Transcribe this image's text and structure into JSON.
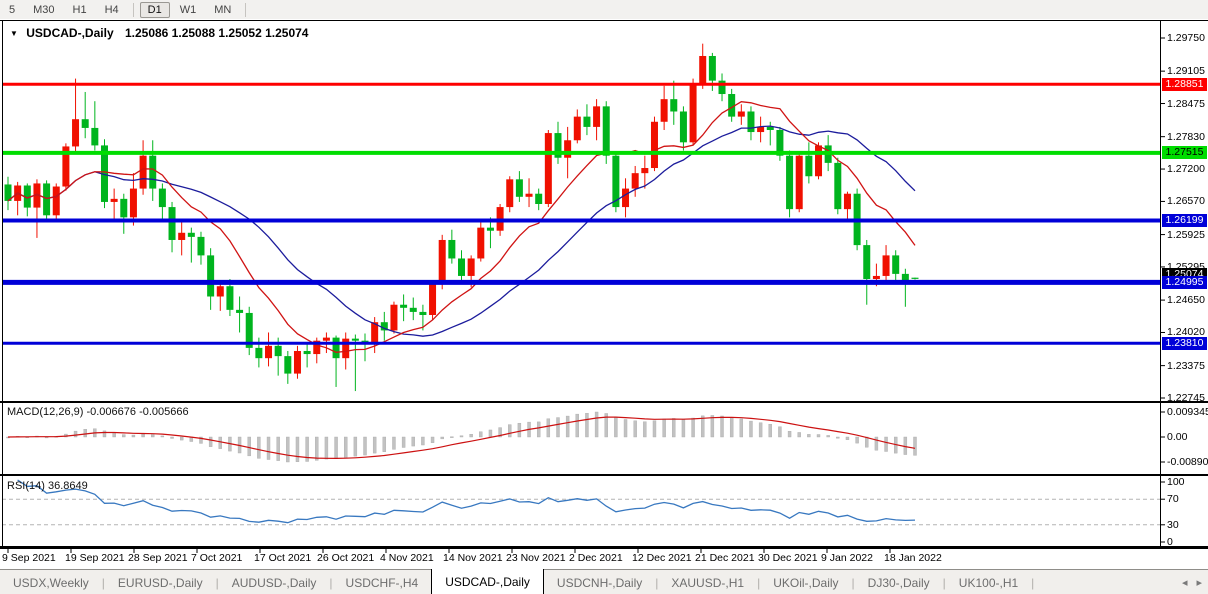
{
  "toolbar": {
    "items": [
      {
        "label": "5"
      },
      {
        "label": "M30"
      },
      {
        "label": "H1"
      },
      {
        "label": "H4"
      },
      {
        "sep": true
      },
      {
        "label": "D1",
        "active": true
      },
      {
        "label": "W1"
      },
      {
        "label": "MN"
      },
      {
        "sep": true
      }
    ]
  },
  "chart": {
    "title": {
      "dropdown_icon": "▼",
      "symbol": "USDCAD-,Daily",
      "ohlc": "1.25086 1.25088 1.25052 1.25074"
    },
    "current_price_badge": {
      "label": "1.25074",
      "value": 1.25074,
      "bg": "#000000",
      "fg": "#ffffff"
    }
  },
  "macd_header": "MACD(12,26,9) -0.006676 -0.005666",
  "rsi_header": "RSI(14) 36.8649",
  "tabs": {
    "items": [
      {
        "label": "USDX,Weekly"
      },
      {
        "label": "EURUSD-,Daily"
      },
      {
        "label": "AUDUSD-,Daily"
      },
      {
        "label": "USDCHF-,H4"
      },
      {
        "label": "USDCAD-,Daily",
        "active": true
      },
      {
        "label": "USDCNH-,Daily"
      },
      {
        "label": "XAUUSD-,H1"
      },
      {
        "label": "UKOil-,Daily"
      },
      {
        "label": "DJ30-,Daily"
      },
      {
        "label": "UK100-,H1"
      }
    ],
    "scroll_left": "◂",
    "scroll_right": "▸"
  },
  "chart_data": {
    "type": "candlestick",
    "symbol": "USDCAD",
    "timeframe": "Daily",
    "up_color": "#f01000",
    "down_color": "#00b41e",
    "ylim": [
      1.2245,
      1.2995
    ],
    "y_ticks": [
      1.2975,
      1.29105,
      1.28475,
      1.2783,
      1.272,
      1.2657,
      1.25925,
      1.25295,
      1.2465,
      1.2402,
      1.23375,
      1.22745
    ],
    "x_labels": [
      "9 Sep 2021",
      "19 Sep 2021",
      "28 Sep 2021",
      "7 Oct 2021",
      "17 Oct 2021",
      "26 Oct 2021",
      "4 Nov 2021",
      "14 Nov 2021",
      "23 Nov 2021",
      "2 Dec 2021",
      "12 Dec 2021",
      "21 Dec 2021",
      "30 Dec 2021",
      "9 Jan 2022",
      "18 Jan 2022"
    ],
    "hlines": [
      {
        "value": 1.28851,
        "label": "1.28851",
        "color": "#fe0000",
        "width": 3,
        "label_bg": "#fe0000",
        "label_fg": "#ffffff"
      },
      {
        "value": 1.27515,
        "label": "1.27515",
        "color": "#00dd00",
        "width": 4,
        "label_bg": "#00dd00",
        "label_fg": "#000000"
      },
      {
        "value": 1.26199,
        "label": "1.26199",
        "color": "#0000d8",
        "width": 4,
        "label_bg": "#0000d8",
        "label_fg": "#ffffff"
      },
      {
        "value": 1.24995,
        "label": "1.24995",
        "color": "#0000d8",
        "width": 5,
        "label_bg": "#0000d8",
        "label_fg": "#ffffff"
      },
      {
        "value": 1.2381,
        "label": "1.23810",
        "color": "#0000d8",
        "width": 3,
        "label_bg": "#0000d8",
        "label_fg": "#ffffff"
      }
    ],
    "overlays": {
      "ma_fast": {
        "period": 10,
        "color": "#d01414"
      },
      "ma_slow": {
        "period": 21,
        "color": "#1c1c9c"
      }
    },
    "macd": {
      "fast": 12,
      "slow": 26,
      "signal": 9,
      "hist_color": "#c2c2c2",
      "signal_color": "#cc1111",
      "displayed_values": [
        -0.006676,
        -0.005666
      ],
      "axis_labels": [
        "0.009345",
        "0.00",
        "-0.008902"
      ]
    },
    "rsi": {
      "period": 14,
      "color": "#3878c0",
      "displayed_value": 36.8649,
      "levels": [
        70,
        30
      ],
      "axis_labels": [
        "100",
        "70",
        "30",
        "0"
      ]
    },
    "candles": [
      [
        1.269,
        1.2705,
        1.264,
        1.2658
      ],
      [
        1.2658,
        1.2695,
        1.263,
        1.2688
      ],
      [
        1.2688,
        1.2692,
        1.2628,
        1.2645
      ],
      [
        1.2645,
        1.27,
        1.2586,
        1.2692
      ],
      [
        1.2692,
        1.2698,
        1.2618,
        1.263
      ],
      [
        1.263,
        1.2692,
        1.262,
        1.2686
      ],
      [
        1.2686,
        1.277,
        1.2678,
        1.2764
      ],
      [
        1.2764,
        1.2896,
        1.2754,
        1.2817
      ],
      [
        1.2817,
        1.287,
        1.278,
        1.28
      ],
      [
        1.28,
        1.2852,
        1.2756,
        1.2766
      ],
      [
        1.2766,
        1.2778,
        1.2644,
        1.2656
      ],
      [
        1.2656,
        1.2682,
        1.262,
        1.2662
      ],
      [
        1.2662,
        1.2672,
        1.2594,
        1.2626
      ],
      [
        1.2626,
        1.2712,
        1.261,
        1.2682
      ],
      [
        1.2682,
        1.2776,
        1.267,
        1.2746
      ],
      [
        1.2746,
        1.2776,
        1.2658,
        1.2682
      ],
      [
        1.2682,
        1.2692,
        1.2618,
        1.2646
      ],
      [
        1.2646,
        1.2656,
        1.2558,
        1.2582
      ],
      [
        1.2582,
        1.2622,
        1.2552,
        1.2596
      ],
      [
        1.2596,
        1.2606,
        1.2538,
        1.2588
      ],
      [
        1.2588,
        1.2598,
        1.2534,
        1.2552
      ],
      [
        1.2552,
        1.2566,
        1.2446,
        1.2472
      ],
      [
        1.2472,
        1.2502,
        1.2444,
        1.2492
      ],
      [
        1.2492,
        1.2506,
        1.2434,
        1.2446
      ],
      [
        1.2446,
        1.2472,
        1.2402,
        1.244
      ],
      [
        1.244,
        1.2452,
        1.2358,
        1.2372
      ],
      [
        1.2372,
        1.2392,
        1.2334,
        1.2352
      ],
      [
        1.2352,
        1.2402,
        1.2336,
        1.2376
      ],
      [
        1.2376,
        1.2392,
        1.2318,
        1.2356
      ],
      [
        1.2356,
        1.2366,
        1.2302,
        1.2322
      ],
      [
        1.2322,
        1.2376,
        1.2312,
        1.2366
      ],
      [
        1.2366,
        1.2382,
        1.2334,
        1.236
      ],
      [
        1.236,
        1.2392,
        1.2342,
        1.2386
      ],
      [
        1.2386,
        1.2402,
        1.2362,
        1.2392
      ],
      [
        1.2392,
        1.2396,
        1.2296,
        1.2352
      ],
      [
        1.2352,
        1.2402,
        1.233,
        1.239
      ],
      [
        1.239,
        1.2398,
        1.2288,
        1.2386
      ],
      [
        1.2386,
        1.24,
        1.2346,
        1.238
      ],
      [
        1.238,
        1.2432,
        1.2362,
        1.2422
      ],
      [
        1.2422,
        1.2442,
        1.2386,
        1.2406
      ],
      [
        1.2406,
        1.2462,
        1.24,
        1.2456
      ],
      [
        1.2456,
        1.2476,
        1.2424,
        1.245
      ],
      [
        1.245,
        1.247,
        1.2426,
        1.2442
      ],
      [
        1.2442,
        1.2456,
        1.2406,
        1.2436
      ],
      [
        1.2436,
        1.2502,
        1.2426,
        1.2496
      ],
      [
        1.2496,
        1.2592,
        1.2486,
        1.2582
      ],
      [
        1.2582,
        1.2602,
        1.2536,
        1.2546
      ],
      [
        1.2546,
        1.2562,
        1.2496,
        1.2512
      ],
      [
        1.2512,
        1.2552,
        1.249,
        1.2546
      ],
      [
        1.2546,
        1.2616,
        1.254,
        1.2606
      ],
      [
        1.2606,
        1.2626,
        1.2566,
        1.26
      ],
      [
        1.26,
        1.2652,
        1.259,
        1.2646
      ],
      [
        1.2646,
        1.2706,
        1.2636,
        1.27
      ],
      [
        1.27,
        1.2716,
        1.2656,
        1.2666
      ],
      [
        1.2666,
        1.2702,
        1.2646,
        1.2672
      ],
      [
        1.2672,
        1.2682,
        1.264,
        1.2652
      ],
      [
        1.2652,
        1.2796,
        1.2646,
        1.279
      ],
      [
        1.279,
        1.2812,
        1.273,
        1.2742
      ],
      [
        1.2742,
        1.2802,
        1.2702,
        1.2776
      ],
      [
        1.2776,
        1.2836,
        1.277,
        1.2822
      ],
      [
        1.2822,
        1.2846,
        1.2786,
        1.2802
      ],
      [
        1.2802,
        1.2856,
        1.2776,
        1.2842
      ],
      [
        1.2842,
        1.2852,
        1.273,
        1.2746
      ],
      [
        1.2746,
        1.2752,
        1.2636,
        1.2646
      ],
      [
        1.2646,
        1.2702,
        1.2626,
        1.2682
      ],
      [
        1.2682,
        1.2726,
        1.2666,
        1.2712
      ],
      [
        1.2712,
        1.2746,
        1.2682,
        1.2722
      ],
      [
        1.2722,
        1.2822,
        1.2716,
        1.2812
      ],
      [
        1.2812,
        1.2882,
        1.2796,
        1.2856
      ],
      [
        1.2856,
        1.2892,
        1.2806,
        1.2832
      ],
      [
        1.2832,
        1.2842,
        1.2756,
        1.2772
      ],
      [
        1.2772,
        1.2896,
        1.2766,
        1.2886
      ],
      [
        1.2886,
        1.2964,
        1.2876,
        1.294
      ],
      [
        1.294,
        1.2946,
        1.2872,
        1.2892
      ],
      [
        1.2892,
        1.2906,
        1.2852,
        1.2866
      ],
      [
        1.2866,
        1.2876,
        1.2812,
        1.2822
      ],
      [
        1.2822,
        1.2846,
        1.2806,
        1.2832
      ],
      [
        1.2832,
        1.2842,
        1.2776,
        1.2792
      ],
      [
        1.2792,
        1.2822,
        1.2772,
        1.2802
      ],
      [
        1.2802,
        1.2812,
        1.2766,
        1.2796
      ],
      [
        1.2796,
        1.2802,
        1.2736,
        1.2746
      ],
      [
        1.2746,
        1.2756,
        1.2626,
        1.2642
      ],
      [
        1.2642,
        1.2752,
        1.2636,
        1.2746
      ],
      [
        1.2746,
        1.2772,
        1.2692,
        1.2706
      ],
      [
        1.2706,
        1.2772,
        1.27,
        1.2766
      ],
      [
        1.2766,
        1.2786,
        1.2716,
        1.2732
      ],
      [
        1.2732,
        1.2742,
        1.2632,
        1.2642
      ],
      [
        1.2642,
        1.2676,
        1.2622,
        1.2672
      ],
      [
        1.2672,
        1.2682,
        1.2562,
        1.2572
      ],
      [
        1.2572,
        1.2582,
        1.2456,
        1.2506
      ],
      [
        1.2506,
        1.2536,
        1.2492,
        1.2512
      ],
      [
        1.2512,
        1.2572,
        1.2502,
        1.2552
      ],
      [
        1.2552,
        1.2562,
        1.2496,
        1.2516
      ],
      [
        1.2516,
        1.2526,
        1.2452,
        1.2502
      ],
      [
        1.25086,
        1.25088,
        1.25052,
        1.25074
      ]
    ]
  }
}
